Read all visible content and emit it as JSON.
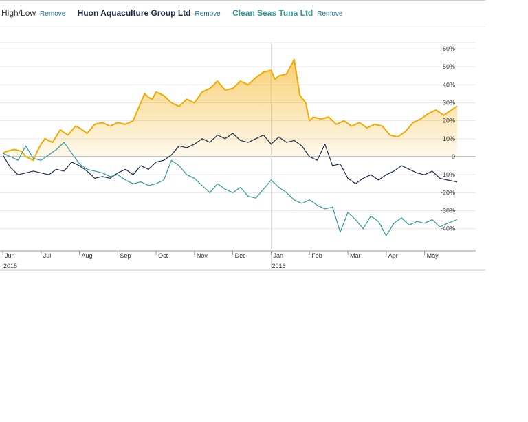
{
  "legend": {
    "highlow_label": "High/Low",
    "remove_label": "Remove",
    "items": [
      {
        "name": "Huon Aquaculture Group Ltd",
        "color": "#1c2c4e"
      },
      {
        "name": "Clean Seas Tuna Ltd",
        "color": "#2e9a9a"
      }
    ]
  },
  "chart_data": {
    "type": "line",
    "title": "",
    "xlabel": "",
    "ylabel": "",
    "ylim": [
      -50,
      60
    ],
    "yticks": [
      60,
      50,
      40,
      30,
      20,
      10,
      0,
      -10,
      -20,
      -30,
      -40
    ],
    "ytick_labels": [
      "60%",
      "50%",
      "40%",
      "30%",
      "20%",
      "10%",
      "0",
      "-10%",
      "-20%",
      "-30%",
      "-40%"
    ],
    "x_months": [
      "Jun",
      "Jul",
      "Aug",
      "Sep",
      "Oct",
      "Nov",
      "Dec",
      "Jan",
      "Feb",
      "Mar",
      "Apr",
      "May"
    ],
    "x_years": [
      {
        "label": "2015",
        "month_index": 0
      },
      {
        "label": "2016",
        "month_index": 7
      }
    ],
    "x_range_months": [
      0,
      11.85
    ],
    "highlow_color": "#f2a900",
    "series": [
      {
        "name": "High/Low",
        "color": "#f2a900",
        "x": [
          0,
          0.1,
          0.3,
          0.5,
          0.6,
          0.8,
          0.9,
          1.0,
          1.1,
          1.3,
          1.5,
          1.7,
          1.9,
          2.0,
          2.2,
          2.4,
          2.6,
          2.8,
          3.0,
          3.2,
          3.4,
          3.6,
          3.7,
          3.8,
          3.9,
          4.0,
          4.2,
          4.4,
          4.6,
          4.8,
          5.0,
          5.2,
          5.4,
          5.6,
          5.8,
          6.0,
          6.2,
          6.4,
          6.6,
          6.8,
          7.0,
          7.1,
          7.2,
          7.4,
          7.6,
          7.75,
          7.9,
          8.0,
          8.1,
          8.3,
          8.5,
          8.7,
          8.9,
          9.1,
          9.3,
          9.5,
          9.7,
          9.9,
          10.1,
          10.3,
          10.5,
          10.7,
          10.9,
          11.1,
          11.3,
          11.5,
          11.7,
          11.85
        ],
        "values": [
          2,
          3,
          4,
          3,
          0,
          -2,
          3,
          7,
          10,
          8,
          15,
          12,
          17,
          16,
          13,
          18,
          19,
          17,
          19,
          18,
          20,
          30,
          35,
          33,
          32,
          36,
          34,
          30,
          28,
          32,
          30,
          36,
          38,
          42,
          37,
          38,
          42,
          40,
          44,
          47,
          48,
          43,
          45,
          46,
          54,
          34,
          30,
          20,
          22,
          21,
          22,
          18,
          20,
          17,
          19,
          16,
          18,
          17,
          12,
          11,
          14,
          19,
          21,
          24,
          26,
          23,
          26,
          28
        ]
      },
      {
        "name": "Huon Aquaculture Group Ltd",
        "color": "#1c2c4e",
        "x": [
          0,
          0.2,
          0.4,
          0.6,
          0.8,
          1.0,
          1.2,
          1.4,
          1.6,
          1.8,
          2.0,
          2.2,
          2.4,
          2.6,
          2.8,
          3.0,
          3.2,
          3.4,
          3.6,
          3.8,
          4.0,
          4.2,
          4.4,
          4.6,
          4.8,
          5.0,
          5.2,
          5.4,
          5.6,
          5.8,
          6.0,
          6.2,
          6.4,
          6.6,
          6.8,
          7.0,
          7.2,
          7.4,
          7.6,
          7.8,
          8.0,
          8.2,
          8.4,
          8.6,
          8.8,
          9.0,
          9.2,
          9.4,
          9.6,
          9.8,
          10.0,
          10.2,
          10.4,
          10.6,
          10.8,
          11.0,
          11.2,
          11.4,
          11.6,
          11.85
        ],
        "values": [
          1,
          -6,
          -10,
          -9,
          -8,
          -9,
          -10,
          -7,
          -8,
          -3,
          -5,
          -8,
          -12,
          -11,
          -12,
          -9,
          -7,
          -10,
          -5,
          -7,
          -3,
          -2,
          1,
          6,
          5,
          7,
          10,
          8,
          12,
          10,
          13,
          9,
          8,
          10,
          12,
          7,
          11,
          8,
          9,
          6,
          0,
          -2,
          7,
          -5,
          -4,
          -12,
          -15,
          -12,
          -10,
          -13,
          -10,
          -8,
          -5,
          -7,
          -9,
          -10,
          -8,
          -12,
          -13,
          -14
        ]
      },
      {
        "name": "Clean Seas Tuna Ltd",
        "color": "#2e9a9a",
        "x": [
          0,
          0.2,
          0.4,
          0.6,
          0.8,
          1.0,
          1.2,
          1.4,
          1.6,
          1.8,
          2.0,
          2.2,
          2.4,
          2.6,
          2.8,
          3.0,
          3.2,
          3.4,
          3.6,
          3.8,
          4.0,
          4.2,
          4.4,
          4.6,
          4.8,
          5.0,
          5.2,
          5.4,
          5.6,
          5.8,
          6.0,
          6.2,
          6.4,
          6.6,
          6.8,
          7.0,
          7.2,
          7.4,
          7.6,
          7.8,
          8.0,
          8.2,
          8.4,
          8.6,
          8.8,
          9.0,
          9.2,
          9.4,
          9.6,
          9.8,
          10.0,
          10.2,
          10.4,
          10.6,
          10.8,
          11.0,
          11.2,
          11.4,
          11.6,
          11.85
        ],
        "values": [
          2,
          0,
          -2,
          6,
          -1,
          -2,
          1,
          4,
          8,
          2,
          -4,
          -7,
          -8,
          -9,
          -11,
          -10,
          -13,
          -15,
          -14,
          -16,
          -15,
          -13,
          -2,
          -5,
          -10,
          -12,
          -16,
          -20,
          -15,
          -18,
          -20,
          -17,
          -22,
          -23,
          -18,
          -13,
          -17,
          -20,
          -24,
          -26,
          -24,
          -27,
          -29,
          -28,
          -42,
          -31,
          -35,
          -40,
          -33,
          -36,
          -44,
          -37,
          -34,
          -38,
          -36,
          -37,
          -35,
          -39,
          -37,
          -35
        ]
      }
    ]
  }
}
